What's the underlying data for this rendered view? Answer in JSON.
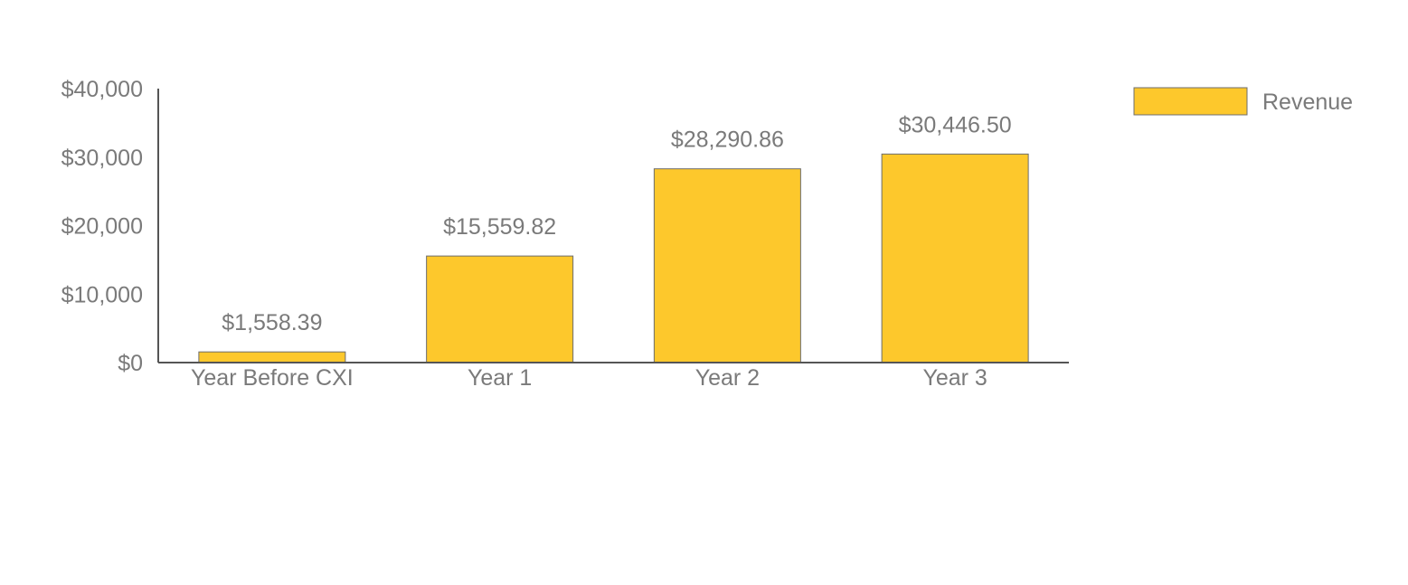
{
  "chart_data": {
    "type": "bar",
    "categories": [
      "Year Before CXI",
      "Year 1",
      "Year 2",
      "Year 3"
    ],
    "series": [
      {
        "name": "Revenue",
        "values": [
          1558.39,
          15559.82,
          28290.86,
          30446.5
        ]
      }
    ],
    "data_labels": [
      "$1,558.39",
      "$15,559.82",
      "$28,290.86",
      "$30,446.50"
    ],
    "y_ticks": [
      0,
      10000,
      20000,
      30000,
      40000
    ],
    "y_tick_labels": [
      "$0",
      "$10,000",
      "$20,000",
      "$30,000",
      "$40,000"
    ],
    "ylim": [
      0,
      40000
    ],
    "grid": false,
    "legend_position": "top-right",
    "colors": {
      "bar_fill": "#fdc82c",
      "bar_stroke": "#6d6d6d",
      "axis": "#555555",
      "text": "#7a7a7a"
    }
  }
}
